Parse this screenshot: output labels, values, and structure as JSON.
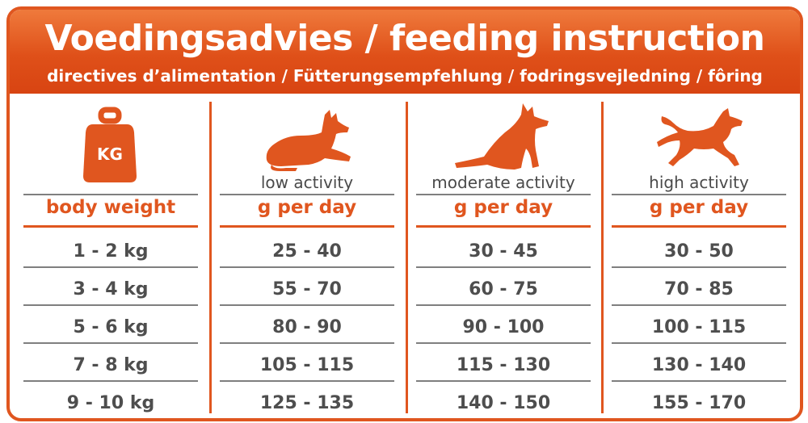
{
  "header": {
    "title": "Voedingsadvies / feeding instruction",
    "subtitle": "directives d’alimentation / Fütterungsempfehlung / fodringsvejledning / fôring"
  },
  "colors": {
    "accent": "#e0561f",
    "text": "#4e4e4e",
    "rule": "#7f7f7f"
  },
  "weight_column": {
    "icon": "kg-weight-icon",
    "icon_text": "KG",
    "header": "body weight",
    "rows": [
      "1 - 2 kg",
      "3 - 4 kg",
      "5 - 6 kg",
      "7 - 8 kg",
      "9 - 10 kg"
    ]
  },
  "activity_columns": [
    {
      "icon": "lying-dog-icon",
      "label": "low activity",
      "header": "g per day",
      "rows": [
        "25 - 40",
        "55 - 70",
        "80 - 90",
        "105 - 115",
        "125 - 135"
      ]
    },
    {
      "icon": "sitting-dog-icon",
      "label": "moderate activity",
      "header": "g per day",
      "rows": [
        "30 - 45",
        "60 - 75",
        "90 - 100",
        "115 - 130",
        "140 - 150"
      ]
    },
    {
      "icon": "running-dog-icon",
      "label": "high activity",
      "header": "g per day",
      "rows": [
        "30 - 50",
        "70 - 85",
        "100 - 115",
        "130 - 140",
        "155 - 170"
      ]
    }
  ]
}
